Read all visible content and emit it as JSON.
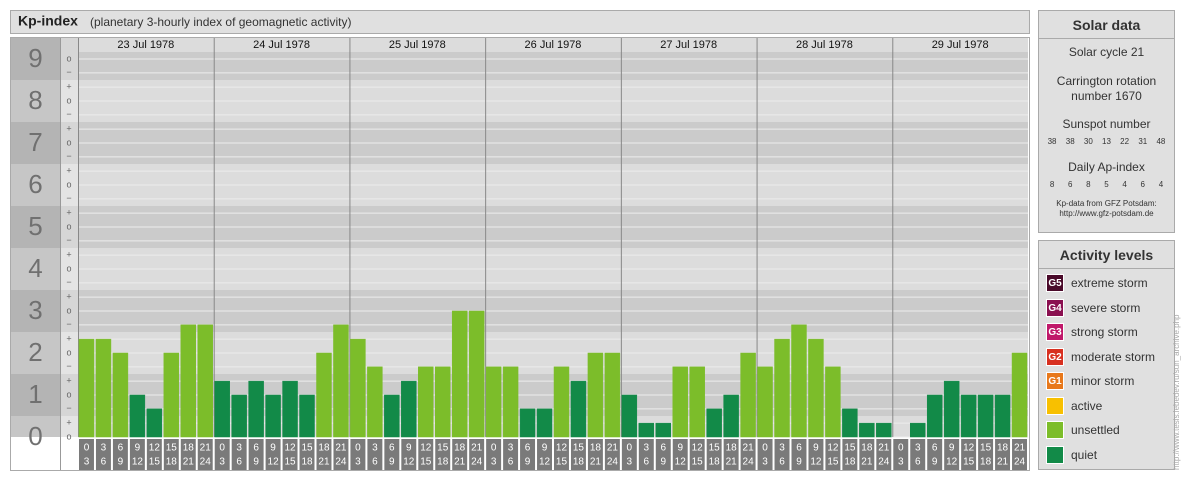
{
  "chart_data": {
    "type": "bar",
    "title": "Kp-index",
    "subtitle": "(planetary 3-hourly index of geomagnetic activity)",
    "days": [
      "23 Jul 1978",
      "24 Jul 1978",
      "25 Jul 1978",
      "26 Jul 1978",
      "27 Jul 1978",
      "28 Jul 1978",
      "29 Jul 1978"
    ],
    "hours": [
      [
        "0",
        "3"
      ],
      [
        "3",
        "6"
      ],
      [
        "6",
        "9"
      ],
      [
        "9",
        "12"
      ],
      [
        "12",
        "15"
      ],
      [
        "15",
        "18"
      ],
      [
        "18",
        "21"
      ],
      [
        "21",
        "24"
      ]
    ],
    "values": [
      2.33,
      2.33,
      2,
      1,
      0.67,
      2,
      2.67,
      2.67,
      1.33,
      1,
      1.33,
      1,
      1.33,
      1,
      2,
      2.67,
      2.33,
      1.67,
      1,
      1.33,
      1.67,
      1.67,
      3,
      3,
      1.67,
      1.67,
      0.67,
      0.67,
      1.67,
      1.33,
      2,
      2,
      1,
      0.33,
      0.33,
      1.67,
      1.67,
      0.67,
      1,
      2,
      1.67,
      2.33,
      2.67,
      2.33,
      1.67,
      0.67,
      0.33,
      0.33,
      0,
      0.33,
      1,
      1.33,
      1,
      1,
      1,
      2
    ],
    "colors": [
      "#7cbd2a",
      "#7cbd2a",
      "#7cbd2a",
      "#128a48",
      "#128a48",
      "#7cbd2a",
      "#7cbd2a",
      "#7cbd2a",
      "#128a48",
      "#128a48",
      "#128a48",
      "#128a48",
      "#128a48",
      "#128a48",
      "#7cbd2a",
      "#7cbd2a",
      "#7cbd2a",
      "#7cbd2a",
      "#128a48",
      "#128a48",
      "#7cbd2a",
      "#7cbd2a",
      "#7cbd2a",
      "#7cbd2a",
      "#7cbd2a",
      "#7cbd2a",
      "#128a48",
      "#128a48",
      "#7cbd2a",
      "#128a48",
      "#7cbd2a",
      "#7cbd2a",
      "#128a48",
      "#128a48",
      "#128a48",
      "#7cbd2a",
      "#7cbd2a",
      "#128a48",
      "#128a48",
      "#7cbd2a",
      "#7cbd2a",
      "#7cbd2a",
      "#7cbd2a",
      "#7cbd2a",
      "#7cbd2a",
      "#128a48",
      "#128a48",
      "#128a48",
      "#128a48",
      "#128a48",
      "#128a48",
      "#128a48",
      "#128a48",
      "#128a48",
      "#128a48",
      "#7cbd2a"
    ],
    "ylim": [
      0,
      9.5
    ],
    "yticks": [
      0,
      1,
      2,
      3,
      4,
      5,
      6,
      7,
      8,
      9
    ],
    "yminorticks": [
      {
        "value": 0,
        "label": "o"
      },
      {
        "value": 0.33,
        "label": "+"
      },
      {
        "value": 0.67,
        "label": "−"
      },
      {
        "value": 1,
        "label": "o"
      },
      {
        "value": 1.33,
        "label": "+"
      },
      {
        "value": 1.67,
        "label": "−"
      },
      {
        "value": 2,
        "label": "o"
      },
      {
        "value": 2.33,
        "label": "+"
      },
      {
        "value": 2.67,
        "label": "−"
      },
      {
        "value": 3,
        "label": "o"
      },
      {
        "value": 3.33,
        "label": "+"
      },
      {
        "value": 3.67,
        "label": "−"
      },
      {
        "value": 4,
        "label": "o"
      },
      {
        "value": 4.33,
        "label": "+"
      },
      {
        "value": 4.67,
        "label": "−"
      },
      {
        "value": 5,
        "label": "o"
      },
      {
        "value": 5.33,
        "label": "+"
      },
      {
        "value": 5.67,
        "label": "−"
      },
      {
        "value": 6,
        "label": "o"
      },
      {
        "value": 6.33,
        "label": "+"
      },
      {
        "value": 6.67,
        "label": "−"
      },
      {
        "value": 7,
        "label": "o"
      },
      {
        "value": 7.33,
        "label": "+"
      },
      {
        "value": 7.67,
        "label": "−"
      },
      {
        "value": 8,
        "label": "o"
      },
      {
        "value": 8.33,
        "label": "+"
      },
      {
        "value": 8.67,
        "label": "−"
      },
      {
        "value": 9,
        "label": "o"
      }
    ],
    "grid": true
  },
  "solar_data": {
    "title": "Solar data",
    "cycle": "Solar cycle 21",
    "carrington": "Carrington rotation number 1670",
    "sunspot_title": "Sunspot number",
    "sunspot": [
      38,
      38,
      30,
      13,
      22,
      31,
      48
    ],
    "ap_title": "Daily Ap-index",
    "ap": [
      8,
      6,
      8,
      5,
      4,
      6,
      4
    ],
    "source": "Kp-data from GFZ Potsdam: http://www.gfz-potsdam.de"
  },
  "activity_levels": {
    "title": "Activity levels",
    "items": [
      {
        "badge": "G5",
        "label": "extreme storm",
        "color": "#4a0a2a"
      },
      {
        "badge": "G4",
        "label": "severe storm",
        "color": "#8a1050"
      },
      {
        "badge": "G3",
        "label": "strong storm",
        "color": "#c0186a"
      },
      {
        "badge": "G2",
        "label": "moderate storm",
        "color": "#d83020"
      },
      {
        "badge": "G1",
        "label": "minor storm",
        "color": "#e8781a"
      },
      {
        "label": "active",
        "color": "#f8c000"
      },
      {
        "label": "unsettled",
        "color": "#7cbd2a"
      },
      {
        "label": "quiet",
        "color": "#128a48"
      }
    ]
  },
  "credit": "http://www.tesis.lebedev.ru/sun_archive.php"
}
